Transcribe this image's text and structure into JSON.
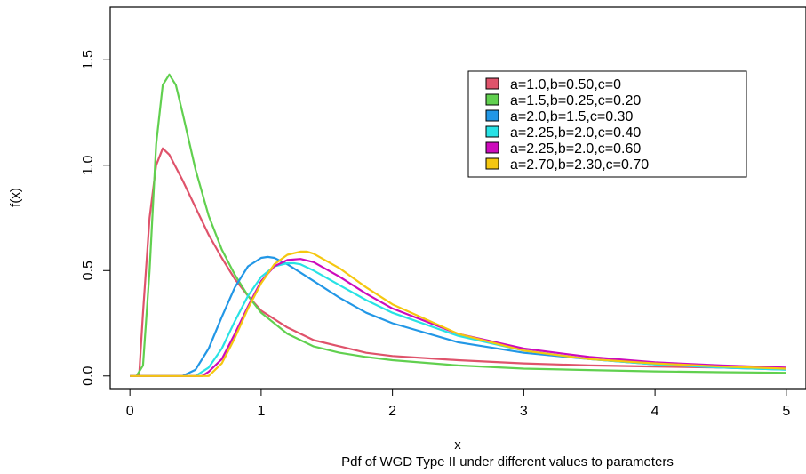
{
  "chart_data": {
    "type": "line",
    "title": "",
    "caption": "Pdf of WGD Type II under different values to parameters",
    "xlabel": "x",
    "ylabel": "f(x)",
    "xlim": [
      -0.15,
      5.15
    ],
    "ylim": [
      -0.06,
      1.75
    ],
    "xticks": [
      0,
      1,
      2,
      3,
      4,
      5
    ],
    "xtick_labels": [
      "0",
      "1",
      "2",
      "3",
      "4",
      "5"
    ],
    "yticks": [
      0.0,
      0.5,
      1.0,
      1.5
    ],
    "ytick_labels": [
      "0.0",
      "0.5",
      "1.0",
      "1.5"
    ],
    "grid": false,
    "legend_position": "top-right",
    "series": [
      {
        "name": "a=1.0,b=0.50,c=0",
        "color": "#DF536B",
        "x": [
          0.07,
          0.1,
          0.15,
          0.2,
          0.25,
          0.3,
          0.4,
          0.5,
          0.6,
          0.7,
          0.8,
          0.9,
          1.0,
          1.2,
          1.4,
          1.6,
          1.8,
          2.0,
          2.5,
          3.0,
          3.5,
          4.0,
          4.5,
          5.0
        ],
        "y": [
          0.0,
          0.3,
          0.75,
          1.0,
          1.08,
          1.05,
          0.93,
          0.8,
          0.67,
          0.56,
          0.46,
          0.38,
          0.31,
          0.23,
          0.17,
          0.14,
          0.11,
          0.095,
          0.075,
          0.06,
          0.05,
          0.045,
          0.04,
          0.035
        ]
      },
      {
        "name": "a=1.5,b=0.25,c=0.20",
        "color": "#61D04F",
        "x": [
          0.05,
          0.1,
          0.15,
          0.2,
          0.25,
          0.3,
          0.35,
          0.4,
          0.5,
          0.6,
          0.7,
          0.8,
          0.9,
          1.0,
          1.2,
          1.4,
          1.6,
          1.8,
          2.0,
          2.5,
          3.0,
          3.5,
          4.0,
          4.5,
          5.0
        ],
        "y": [
          0.0,
          0.05,
          0.5,
          1.1,
          1.38,
          1.43,
          1.38,
          1.25,
          0.98,
          0.76,
          0.6,
          0.48,
          0.38,
          0.3,
          0.2,
          0.14,
          0.11,
          0.09,
          0.075,
          0.05,
          0.035,
          0.028,
          0.022,
          0.018,
          0.015
        ]
      },
      {
        "name": "a=2.0,b=1.5,c=0.30",
        "color": "#2297E6",
        "x": [
          0.0,
          0.4,
          0.5,
          0.6,
          0.7,
          0.8,
          0.9,
          1.0,
          1.05,
          1.1,
          1.2,
          1.3,
          1.4,
          1.6,
          1.8,
          2.0,
          2.5,
          3.0,
          3.5,
          4.0,
          4.5,
          5.0
        ],
        "y": [
          0.0,
          0.0,
          0.03,
          0.13,
          0.28,
          0.42,
          0.52,
          0.56,
          0.565,
          0.56,
          0.53,
          0.49,
          0.45,
          0.37,
          0.3,
          0.25,
          0.16,
          0.11,
          0.08,
          0.055,
          0.04,
          0.03
        ]
      },
      {
        "name": "a=2.25,b=2.0,c=0.40",
        "color": "#28E2E5",
        "x": [
          0.0,
          0.5,
          0.6,
          0.7,
          0.8,
          0.9,
          1.0,
          1.1,
          1.2,
          1.25,
          1.3,
          1.4,
          1.6,
          1.8,
          2.0,
          2.5,
          3.0,
          3.5,
          4.0,
          4.5,
          5.0
        ],
        "y": [
          0.0,
          0.0,
          0.04,
          0.13,
          0.26,
          0.38,
          0.47,
          0.52,
          0.535,
          0.535,
          0.53,
          0.5,
          0.43,
          0.36,
          0.3,
          0.19,
          0.12,
          0.08,
          0.055,
          0.04,
          0.03
        ]
      },
      {
        "name": "a=2.25,b=2.0,c=0.60",
        "color": "#CD0BBC",
        "x": [
          0.0,
          0.55,
          0.6,
          0.7,
          0.8,
          0.9,
          1.0,
          1.1,
          1.2,
          1.3,
          1.4,
          1.6,
          1.8,
          2.0,
          2.5,
          3.0,
          3.5,
          4.0,
          4.5,
          5.0
        ],
        "y": [
          0.0,
          0.0,
          0.02,
          0.08,
          0.2,
          0.33,
          0.45,
          0.52,
          0.55,
          0.555,
          0.54,
          0.47,
          0.39,
          0.32,
          0.2,
          0.13,
          0.09,
          0.065,
          0.05,
          0.04
        ]
      },
      {
        "name": "a=2.70,b=2.30,c=0.70",
        "color": "#F5C710",
        "x": [
          0.0,
          0.6,
          0.7,
          0.8,
          0.9,
          1.0,
          1.1,
          1.2,
          1.3,
          1.35,
          1.4,
          1.6,
          1.8,
          2.0,
          2.5,
          3.0,
          3.5,
          4.0,
          4.5,
          5.0
        ],
        "y": [
          0.0,
          0.0,
          0.06,
          0.18,
          0.32,
          0.44,
          0.53,
          0.575,
          0.59,
          0.59,
          0.58,
          0.51,
          0.42,
          0.34,
          0.2,
          0.12,
          0.08,
          0.06,
          0.045,
          0.035
        ]
      }
    ]
  }
}
